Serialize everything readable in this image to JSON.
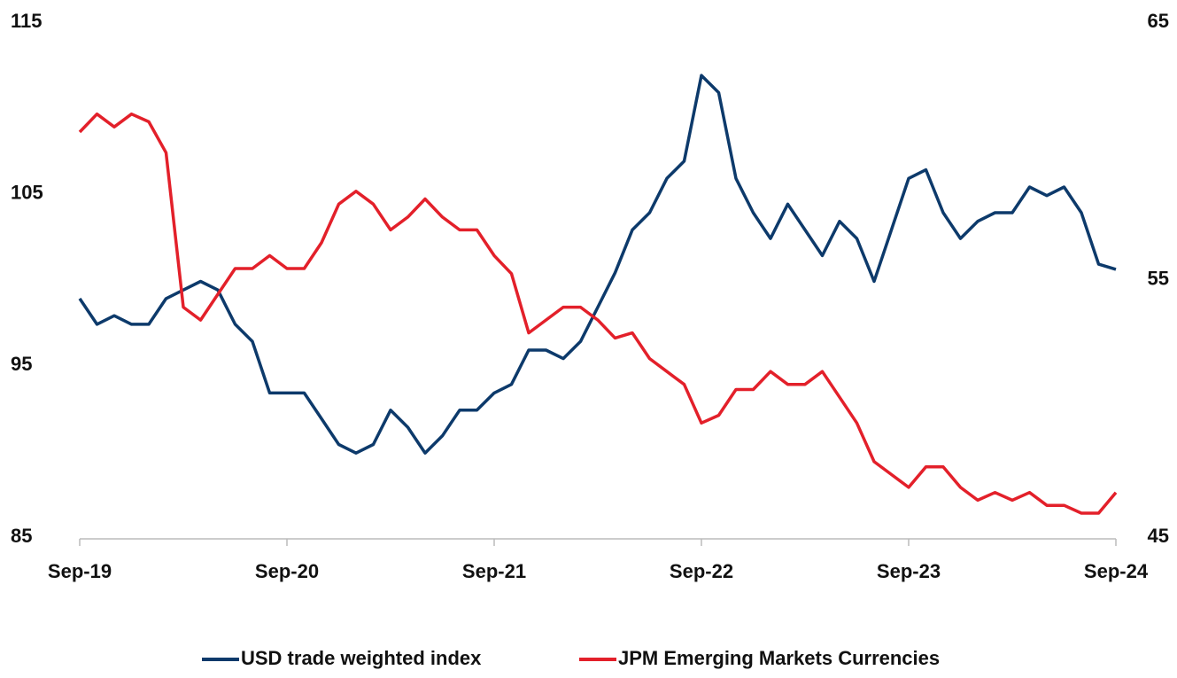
{
  "chart_data": {
    "type": "line",
    "categories": [
      "Sep-19",
      null,
      null,
      null,
      null,
      null,
      null,
      null,
      null,
      null,
      null,
      null,
      "Sep-20",
      null,
      null,
      null,
      null,
      null,
      null,
      null,
      null,
      null,
      null,
      null,
      "Sep-21",
      null,
      null,
      null,
      null,
      null,
      null,
      null,
      null,
      null,
      null,
      null,
      "Sep-22",
      null,
      null,
      null,
      null,
      null,
      null,
      null,
      null,
      null,
      null,
      null,
      "Sep-23",
      null,
      null,
      null,
      null,
      null,
      null,
      null,
      null,
      null,
      null,
      null,
      "Sep-24"
    ],
    "series": [
      {
        "name": "USD trade weighted index",
        "color": "#0d3a6b",
        "axis": "y",
        "values": [
          99,
          97.5,
          98,
          97.5,
          97.5,
          99,
          99.5,
          100,
          99.5,
          97.5,
          96.5,
          93.5,
          93.5,
          93.5,
          92,
          90.5,
          90,
          90.5,
          92.5,
          91.5,
          90,
          91,
          92.5,
          92.5,
          93.5,
          94,
          96,
          96,
          95.5,
          96.5,
          98.5,
          100.5,
          103,
          104,
          106,
          107,
          112,
          111,
          106,
          104,
          102.5,
          104.5,
          103,
          101.5,
          103.5,
          102.5,
          100,
          103,
          106,
          106.5,
          104,
          102.5,
          103.5,
          104,
          104,
          105.5,
          105,
          105.5,
          104,
          101,
          100.7
        ]
      },
      {
        "name": "JPM Emerging Markets Currencies",
        "color": "#e3202a",
        "axis": "y2",
        "values": [
          60.8,
          61.5,
          61,
          61.5,
          61.2,
          60,
          54,
          53.5,
          54.5,
          55.5,
          55.5,
          56,
          55.5,
          55.5,
          56.5,
          58,
          58.5,
          58,
          57,
          57.5,
          58.2,
          57.5,
          57,
          57,
          56,
          55.3,
          53,
          53.5,
          54,
          54,
          53.5,
          52.8,
          53,
          52,
          51.5,
          51,
          49.5,
          49.8,
          50.8,
          50.8,
          51.5,
          51,
          51,
          51.5,
          50.5,
          49.5,
          48,
          47.5,
          47,
          47.8,
          47.8,
          47,
          46.5,
          46.8,
          46.5,
          46.8,
          46.3,
          46.3,
          46,
          46,
          46.8
        ]
      }
    ],
    "ylim": [
      85,
      115
    ],
    "yticks": [
      85,
      95,
      105,
      115
    ],
    "y2lim": [
      45,
      65
    ],
    "y2ticks": [
      45,
      55,
      65
    ],
    "legend": "bottom"
  }
}
